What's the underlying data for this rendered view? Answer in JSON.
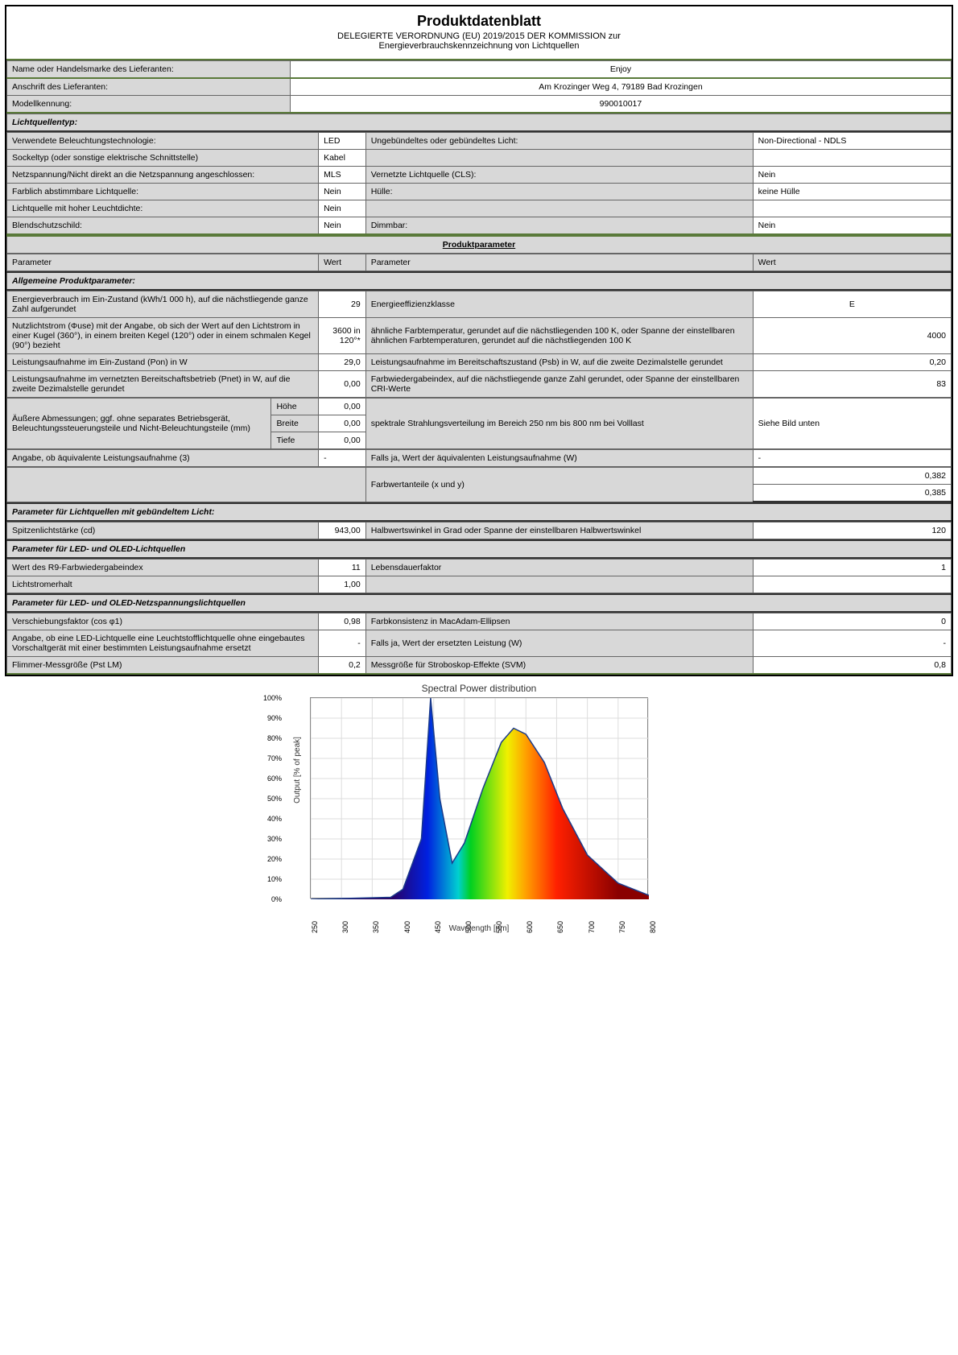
{
  "header": {
    "title": "Produktdatenblatt",
    "sub1": "DELEGIERTE VERORDNUNG (EU) 2019/2015 DER KOMMISSION zur",
    "sub2": "Energieverbrauchskennzeichnung von Lichtquellen"
  },
  "supplier": {
    "name_label": "Name oder Handelsmarke des Lieferanten:",
    "name_value": "Enjoy",
    "address_label": "Anschrift des Lieferanten:",
    "address_value": "Am Krozinger Weg 4, 79189 Bad Krozingen",
    "model_label": "Modellkennung:",
    "model_value": "990010017"
  },
  "source_type_label": "Lichtquellentyp:",
  "tech_rows": [
    {
      "l1": "Verwendete Beleuchtungstechnologie:",
      "v1": "LED",
      "l2": "Ungebündeltes oder gebündeltes Licht:",
      "v2": "Non-Directional - NDLS"
    },
    {
      "l1": "Sockeltyp (oder sonstige elektrische Schnittstelle)",
      "v1": "Kabel",
      "l2": "",
      "v2": ""
    },
    {
      "l1": "Netzspannung/Nicht direkt an die Netzspannung angeschlossen:",
      "v1": "MLS",
      "l2": "Vernetzte Lichtquelle (CLS):",
      "v2": "Nein"
    },
    {
      "l1": "Farblich abstimmbare Lichtquelle:",
      "v1": "Nein",
      "l2": "Hülle:",
      "v2": "keine Hülle"
    },
    {
      "l1": "Lichtquelle mit hoher Leuchtdichte:",
      "v1": "Nein",
      "l2": "",
      "v2": ""
    },
    {
      "l1": "Blendschutzschild:",
      "v1": "Nein",
      "l2": "Dimmbar:",
      "v2": "Nein"
    }
  ],
  "product_params_title": "Produktparameter",
  "param_header": {
    "c1": "Parameter",
    "c2": "Wert",
    "c3": "Parameter",
    "c4": "Wert"
  },
  "general_section": "Allgemeine Produktparameter:",
  "general_rows": [
    {
      "l1": "Energieverbrauch im Ein-Zustand (kWh/1 000 h), auf die nächstliegende ganze Zahl aufgerundet",
      "v1": "29",
      "l2": "Energieeffizienzklasse",
      "v2": "E",
      "v2align": "center"
    },
    {
      "l1": "Nutzlichtstrom (Φuse) mit der Angabe, ob sich der Wert auf den Lichtstrom in einer Kugel (360°), in einem breiten Kegel (120°) oder in einem schmalen Kegel (90°) bezieht",
      "v1": "3600 in 120°*",
      "l2": "ähnliche Farbtemperatur, gerundet auf die nächstliegenden 100 K, oder Spanne der einstellbaren ähnlichen Farbtemperaturen, gerundet auf die  nächstliegenden 100 K",
      "v2": "4000"
    },
    {
      "l1": "Leistungsaufnahme im Ein-Zustand (Pon) in W",
      "v1": "29,0",
      "l2": "Leistungsaufnahme im Bereitschaftszustand (Psb) in W, auf die zweite Dezimalstelle gerundet",
      "v2": "0,20"
    },
    {
      "l1": "Leistungsaufnahme im vernetzten Bereitschaftsbetrieb (Pnet) in W, auf die zweite Dezimalstelle gerundet",
      "v1": "0,00",
      "l2": "Farbwiedergabeindex, auf die nächstliegende ganze Zahl gerundet, oder Spanne der einstellbaren CRI-Werte",
      "v2": "83"
    }
  ],
  "dimensions": {
    "label": "Äußere Abmessungen; ggf. ohne separates Betriebsgerät, Beleuchtungssteuerungsteile und Nicht-Beleuchtungsteile (mm)",
    "height_l": "Höhe",
    "height_v": "0,00",
    "width_l": "Breite",
    "width_v": "0,00",
    "depth_l": "Tiefe",
    "depth_v": "0,00",
    "spectral_l": "spektrale Strahlungsverteilung im Bereich 250 nm bis 800 nm bei Volllast",
    "spectral_v": "Siehe Bild unten"
  },
  "equiv": {
    "l1": "Angabe, ob äquivalente Leistungsaufnahme (3)",
    "v1": "-",
    "l2": "Falls ja, Wert der äquivalenten Leistungsaufnahme (W)",
    "v2": "-"
  },
  "chroma": {
    "l": "Farbwertanteile (x und y)",
    "x": "0,382",
    "y": "0,385"
  },
  "directed_section": "Parameter für Lichtquellen mit gebündeltem Licht:",
  "directed_rows": [
    {
      "l1": "Spitzenlichtstärke (cd)",
      "v1": "943,00",
      "l2": "Halbwertswinkel in Grad oder Spanne der einstellbaren Halbwertswinkel",
      "v2": "120"
    }
  ],
  "led_section": "Parameter für LED- und OLED-Lichtquellen",
  "led_rows": [
    {
      "l1": "Wert des R9-Farbwiedergabeindex",
      "v1": "11",
      "l2": "Lebensdauerfaktor",
      "v2": "1"
    },
    {
      "l1": "Lichtstromerhalt",
      "v1": "1,00",
      "l2": "",
      "v2": ""
    }
  ],
  "mains_section": "Parameter für LED- und OLED-Netzspannungslichtquellen",
  "mains_rows": [
    {
      "l1": "Verschiebungsfaktor (cos φ1)",
      "v1": "0,98",
      "l2": "Farbkonsistenz in MacAdam-Ellipsen",
      "v2": "0"
    },
    {
      "l1": "Angabe, ob eine LED-Lichtquelle eine Leuchtstofflichtquelle ohne eingebautes Vorschaltgerät mit einer bestimmten Leistungsaufnahme ersetzt",
      "v1": "-",
      "l2": "Falls ja, Wert der ersetzten Leistung (W)",
      "v2": "-"
    },
    {
      "l1": "Flimmer-Messgröße (Pst LM)",
      "v1": "0,2",
      "l2": "Messgröße für Stroboskop-Effekte (SVM)",
      "v2": "0,8"
    }
  ],
  "chart": {
    "title": "Spectral Power distribution",
    "ylabel": "Output [% of peak]",
    "xlabel": "Wavelength [nm]",
    "ylim": [
      0,
      100
    ],
    "ytick_step": 10,
    "xlim": [
      250,
      800
    ],
    "xtick_step": 50,
    "xticks": [
      250,
      300,
      350,
      400,
      450,
      500,
      550,
      600,
      650,
      700,
      750,
      800
    ],
    "yticks": [
      0,
      10,
      20,
      30,
      40,
      50,
      60,
      70,
      80,
      90,
      100
    ],
    "background_color": "#ffffff",
    "grid_color": "#dddddd",
    "line_color": "#1a3a8a",
    "curve": [
      [
        250,
        0
      ],
      [
        380,
        1
      ],
      [
        400,
        5
      ],
      [
        430,
        30
      ],
      [
        445,
        100
      ],
      [
        460,
        50
      ],
      [
        480,
        18
      ],
      [
        500,
        28
      ],
      [
        530,
        55
      ],
      [
        560,
        78
      ],
      [
        580,
        85
      ],
      [
        600,
        82
      ],
      [
        630,
        68
      ],
      [
        660,
        45
      ],
      [
        700,
        22
      ],
      [
        750,
        8
      ],
      [
        800,
        2
      ]
    ],
    "gradient_stops": [
      {
        "nm": 380,
        "color": "#2a0060"
      },
      {
        "nm": 440,
        "color": "#0020e0"
      },
      {
        "nm": 490,
        "color": "#00d0d0"
      },
      {
        "nm": 510,
        "color": "#00d020"
      },
      {
        "nm": 570,
        "color": "#f0f000"
      },
      {
        "nm": 600,
        "color": "#ffa000"
      },
      {
        "nm": 650,
        "color": "#ff2000"
      },
      {
        "nm": 750,
        "color": "#8a0000"
      }
    ]
  }
}
